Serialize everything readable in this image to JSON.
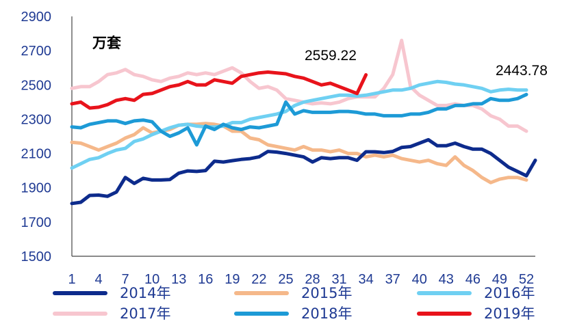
{
  "chart_data": {
    "type": "line",
    "unit_label": "万套",
    "ylim": [
      1500,
      2900
    ],
    "yticks": [
      "1500",
      "1700",
      "1900",
      "2100",
      "2300",
      "2500",
      "2700",
      "2900"
    ],
    "xticks": [
      "1",
      "4",
      "7",
      "10",
      "13",
      "16",
      "19",
      "22",
      "25",
      "28",
      "31",
      "34",
      "37",
      "40",
      "43",
      "46",
      "49",
      "52"
    ],
    "x_range": [
      1,
      53
    ],
    "grid": false,
    "legend_position": "bottom",
    "annotations": [
      {
        "text": "2559.22",
        "series": "2019年",
        "x": 34,
        "y": 2559.22
      },
      {
        "text": "2443.78",
        "series": "2018年",
        "x": 52,
        "y": 2443.78
      }
    ],
    "series": [
      {
        "name": "2014年",
        "color": "#0d2b8c",
        "x": [
          1,
          2,
          3,
          4,
          5,
          6,
          7,
          8,
          9,
          10,
          11,
          12,
          13,
          14,
          15,
          16,
          17,
          18,
          19,
          20,
          21,
          22,
          23,
          24,
          25,
          26,
          27,
          28,
          29,
          30,
          31,
          32,
          33,
          34,
          35,
          36,
          37,
          38,
          39,
          40,
          41,
          42,
          43,
          44,
          45,
          46,
          47,
          48,
          49,
          50,
          51,
          52,
          53
        ],
        "values": [
          1808,
          1815,
          1855,
          1857,
          1850,
          1875,
          1960,
          1925,
          1955,
          1945,
          1945,
          1948,
          1985,
          1998,
          1995,
          2000,
          2055,
          2050,
          2058,
          2065,
          2070,
          2080,
          2112,
          2108,
          2100,
          2090,
          2080,
          2050,
          2075,
          2070,
          2075,
          2075,
          2060,
          2110,
          2110,
          2105,
          2112,
          2135,
          2140,
          2160,
          2180,
          2145,
          2145,
          2160,
          2140,
          2125,
          2125,
          2100,
          2060,
          2020,
          1995,
          1970,
          2060
        ]
      },
      {
        "name": "2015年",
        "color": "#f5b88a",
        "x": [
          1,
          2,
          3,
          4,
          5,
          6,
          7,
          8,
          9,
          10,
          11,
          12,
          13,
          14,
          15,
          16,
          17,
          18,
          19,
          20,
          21,
          22,
          23,
          24,
          25,
          26,
          27,
          28,
          29,
          30,
          31,
          32,
          33,
          34,
          35,
          36,
          37,
          38,
          39,
          40,
          41,
          42,
          43,
          44,
          45,
          46,
          47,
          48,
          49,
          50,
          51,
          52
        ],
        "values": [
          2165,
          2160,
          2140,
          2120,
          2140,
          2160,
          2190,
          2210,
          2250,
          2220,
          2230,
          2240,
          2265,
          2270,
          2270,
          2275,
          2270,
          2260,
          2230,
          2230,
          2190,
          2180,
          2150,
          2140,
          2130,
          2120,
          2140,
          2120,
          2120,
          2110,
          2120,
          2100,
          2100,
          2080,
          2090,
          2080,
          2090,
          2070,
          2060,
          2050,
          2060,
          2040,
          2030,
          2080,
          2030,
          2000,
          1960,
          1930,
          1950,
          1960,
          1960,
          1945
        ]
      },
      {
        "name": "2016年",
        "color": "#6fd0f2",
        "x": [
          1,
          2,
          3,
          4,
          5,
          6,
          7,
          8,
          9,
          10,
          11,
          12,
          13,
          14,
          15,
          16,
          17,
          18,
          19,
          20,
          21,
          22,
          23,
          24,
          25,
          26,
          27,
          28,
          29,
          30,
          31,
          32,
          33,
          34,
          35,
          36,
          37,
          38,
          39,
          40,
          41,
          42,
          43,
          44,
          45,
          46,
          47,
          48,
          49,
          50,
          51,
          52
        ],
        "values": [
          2015,
          2040,
          2065,
          2075,
          2100,
          2120,
          2130,
          2170,
          2185,
          2210,
          2230,
          2250,
          2265,
          2270,
          2260,
          2255,
          2255,
          2260,
          2280,
          2280,
          2300,
          2310,
          2320,
          2330,
          2345,
          2380,
          2400,
          2410,
          2420,
          2430,
          2440,
          2440,
          2435,
          2440,
          2450,
          2460,
          2470,
          2470,
          2480,
          2500,
          2510,
          2520,
          2515,
          2505,
          2500,
          2490,
          2480,
          2460,
          2470,
          2475,
          2470,
          2470
        ]
      },
      {
        "name": "2017年",
        "color": "#f7c6cf",
        "x": [
          1,
          2,
          3,
          4,
          5,
          6,
          7,
          8,
          9,
          10,
          11,
          12,
          13,
          14,
          15,
          16,
          17,
          18,
          19,
          20,
          21,
          22,
          23,
          24,
          25,
          26,
          27,
          28,
          29,
          30,
          31,
          32,
          33,
          34,
          35,
          36,
          37,
          38,
          39,
          40,
          41,
          42,
          43,
          44,
          45,
          46,
          47,
          48,
          49,
          50,
          51,
          52
        ],
        "values": [
          2480,
          2490,
          2490,
          2520,
          2560,
          2570,
          2590,
          2560,
          2550,
          2530,
          2520,
          2540,
          2550,
          2570,
          2560,
          2570,
          2560,
          2580,
          2600,
          2570,
          2520,
          2480,
          2490,
          2470,
          2420,
          2410,
          2400,
          2390,
          2395,
          2390,
          2400,
          2420,
          2430,
          2430,
          2430,
          2480,
          2560,
          2760,
          2490,
          2440,
          2410,
          2380,
          2380,
          2390,
          2380,
          2380,
          2360,
          2320,
          2300,
          2260,
          2260,
          2230
        ]
      },
      {
        "name": "2018年",
        "color": "#1d9ad6",
        "x": [
          1,
          2,
          3,
          4,
          5,
          6,
          7,
          8,
          9,
          10,
          11,
          12,
          13,
          14,
          15,
          16,
          17,
          18,
          19,
          20,
          21,
          22,
          23,
          24,
          25,
          26,
          27,
          28,
          29,
          30,
          31,
          32,
          33,
          34,
          35,
          36,
          37,
          38,
          39,
          40,
          41,
          42,
          43,
          44,
          45,
          46,
          47,
          48,
          49,
          50,
          51,
          52
        ],
        "values": [
          2255,
          2250,
          2270,
          2280,
          2290,
          2290,
          2275,
          2290,
          2295,
          2285,
          2230,
          2200,
          2220,
          2250,
          2150,
          2260,
          2240,
          2270,
          2250,
          2240,
          2255,
          2250,
          2260,
          2270,
          2400,
          2330,
          2350,
          2340,
          2340,
          2340,
          2345,
          2345,
          2340,
          2330,
          2330,
          2320,
          2320,
          2320,
          2330,
          2330,
          2340,
          2360,
          2360,
          2380,
          2380,
          2390,
          2390,
          2420,
          2410,
          2410,
          2420,
          2444
        ]
      },
      {
        "name": "2019年",
        "color": "#e8131b",
        "x": [
          1,
          2,
          3,
          4,
          5,
          6,
          7,
          8,
          9,
          10,
          11,
          12,
          13,
          14,
          15,
          16,
          17,
          18,
          19,
          20,
          21,
          22,
          23,
          24,
          25,
          26,
          27,
          28,
          29,
          30,
          31,
          32,
          33,
          34
        ],
        "values": [
          2390,
          2400,
          2365,
          2370,
          2385,
          2410,
          2420,
          2410,
          2445,
          2450,
          2470,
          2490,
          2500,
          2520,
          2500,
          2500,
          2530,
          2520,
          2510,
          2550,
          2560,
          2570,
          2575,
          2570,
          2565,
          2550,
          2540,
          2520,
          2500,
          2510,
          2490,
          2470,
          2450,
          2559
        ]
      }
    ]
  }
}
